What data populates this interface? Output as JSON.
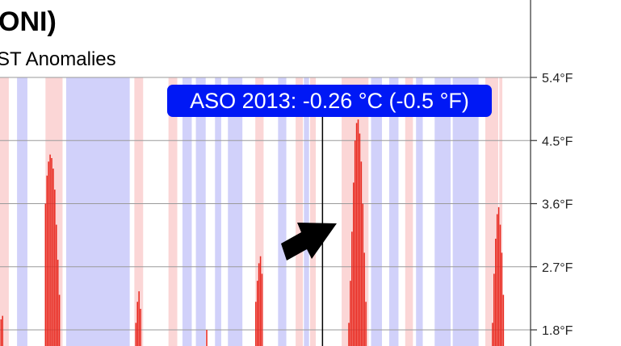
{
  "title": "ONI)",
  "subtitle": "ST Anomalies",
  "tooltip": "ASO 2013: -0.26 °C (-0.5 °F)",
  "colors": {
    "bar": "#e8281e",
    "warm_band": "#fbd6d6",
    "cool_band": "#d1d1fa",
    "tooltip_bg": "#0018f5",
    "grid": "#9a9a9a"
  },
  "chart_data": {
    "type": "bar",
    "title": "ONI)",
    "subtitle": "ST Anomalies",
    "ylabel": "",
    "ylim": [
      1.7,
      5.4
    ],
    "y_ticks": [
      {
        "value": 5.4,
        "label": "5.4°F"
      },
      {
        "value": 4.5,
        "label": "4.5°F"
      },
      {
        "value": 3.6,
        "label": "3.6°F"
      },
      {
        "value": 2.7,
        "label": "2.7°F"
      },
      {
        "value": 1.8,
        "label": "1.8°F"
      }
    ],
    "xlim": [
      0,
      100
    ],
    "cursor_x": 62.4,
    "series": [
      {
        "name": "anomaly_peaks",
        "values": [
          {
            "x": 0.2,
            "v": 1.95
          },
          {
            "x": 0.5,
            "v": 2.0
          },
          {
            "x": 8.8,
            "v": 3.6
          },
          {
            "x": 9.1,
            "v": 4.0
          },
          {
            "x": 9.4,
            "v": 4.2
          },
          {
            "x": 9.7,
            "v": 4.3
          },
          {
            "x": 10.0,
            "v": 4.25
          },
          {
            "x": 10.3,
            "v": 4.1
          },
          {
            "x": 10.6,
            "v": 3.8
          },
          {
            "x": 10.9,
            "v": 3.3
          },
          {
            "x": 11.2,
            "v": 2.8
          },
          {
            "x": 11.5,
            "v": 2.3
          },
          {
            "x": 26.3,
            "v": 1.9
          },
          {
            "x": 26.6,
            "v": 2.2
          },
          {
            "x": 26.9,
            "v": 2.35
          },
          {
            "x": 27.2,
            "v": 2.1
          },
          {
            "x": 40.0,
            "v": 1.8
          },
          {
            "x": 49.5,
            "v": 2.2
          },
          {
            "x": 49.8,
            "v": 2.5
          },
          {
            "x": 50.1,
            "v": 2.75
          },
          {
            "x": 50.4,
            "v": 2.85
          },
          {
            "x": 50.7,
            "v": 2.6
          },
          {
            "x": 67.5,
            "v": 1.9
          },
          {
            "x": 67.8,
            "v": 2.5
          },
          {
            "x": 68.1,
            "v": 3.2
          },
          {
            "x": 68.4,
            "v": 3.9
          },
          {
            "x": 68.7,
            "v": 4.5
          },
          {
            "x": 69.0,
            "v": 4.75
          },
          {
            "x": 69.3,
            "v": 4.8
          },
          {
            "x": 69.6,
            "v": 4.6
          },
          {
            "x": 69.9,
            "v": 4.2
          },
          {
            "x": 70.2,
            "v": 3.6
          },
          {
            "x": 70.5,
            "v": 2.9
          },
          {
            "x": 70.8,
            "v": 2.2
          },
          {
            "x": 95.3,
            "v": 1.9
          },
          {
            "x": 95.6,
            "v": 2.6
          },
          {
            "x": 95.9,
            "v": 3.1
          },
          {
            "x": 96.2,
            "v": 3.45
          },
          {
            "x": 96.5,
            "v": 3.55
          },
          {
            "x": 96.8,
            "v": 3.3
          },
          {
            "x": 97.1,
            "v": 2.9
          },
          {
            "x": 97.4,
            "v": 2.3
          }
        ]
      }
    ],
    "bands": [
      {
        "from": 0.0,
        "to": 1.7,
        "phase": "warm"
      },
      {
        "from": 3.3,
        "to": 5.3,
        "phase": "cool"
      },
      {
        "from": 8.8,
        "to": 12.1,
        "phase": "warm"
      },
      {
        "from": 12.8,
        "to": 25.1,
        "phase": "cool"
      },
      {
        "from": 26.0,
        "to": 27.7,
        "phase": "warm"
      },
      {
        "from": 32.6,
        "to": 34.3,
        "phase": "warm"
      },
      {
        "from": 35.3,
        "to": 37.1,
        "phase": "cool"
      },
      {
        "from": 37.9,
        "to": 39.8,
        "phase": "cool"
      },
      {
        "from": 41.6,
        "to": 42.8,
        "phase": "cool"
      },
      {
        "from": 44.1,
        "to": 46.9,
        "phase": "cool"
      },
      {
        "from": 49.4,
        "to": 51.0,
        "phase": "warm"
      },
      {
        "from": 53.8,
        "to": 55.4,
        "phase": "cool"
      },
      {
        "from": 57.2,
        "to": 58.6,
        "phase": "warm"
      },
      {
        "from": 58.8,
        "to": 59.8,
        "phase": "cool"
      },
      {
        "from": 60.0,
        "to": 61.1,
        "phase": "warm"
      },
      {
        "from": 66.1,
        "to": 71.3,
        "phase": "warm"
      },
      {
        "from": 71.8,
        "to": 73.9,
        "phase": "cool"
      },
      {
        "from": 75.3,
        "to": 77.1,
        "phase": "cool"
      },
      {
        "from": 78.4,
        "to": 79.9,
        "phase": "warm"
      },
      {
        "from": 80.5,
        "to": 81.8,
        "phase": "cool"
      },
      {
        "from": 84.1,
        "to": 87.2,
        "phase": "cool"
      },
      {
        "from": 87.6,
        "to": 92.6,
        "phase": "cool"
      },
      {
        "from": 93.9,
        "to": 96.4,
        "phase": "warm"
      },
      {
        "from": 96.6,
        "to": 97.2,
        "phase": "warm"
      }
    ]
  }
}
